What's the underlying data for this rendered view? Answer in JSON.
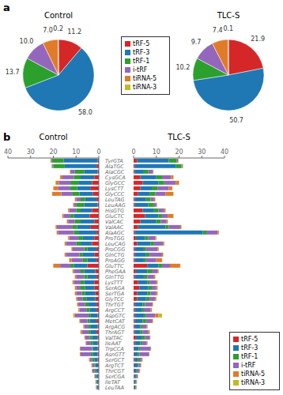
{
  "chart_data": [
    {
      "type": "pie",
      "title": "Control",
      "annotations": [
        "a"
      ],
      "categories": [
        "tRF-5",
        "tRF-3",
        "tRF-1",
        "i-tRF",
        "tiRNA-5",
        "tiRNA-3"
      ],
      "values": [
        11.2,
        58.0,
        13.7,
        10.0,
        7.0,
        0.2
      ],
      "value_labels": [
        "11.2",
        "58.0",
        "13.7",
        "10.0",
        "7.0",
        "0.2"
      ],
      "colors": [
        "#d62728",
        "#1f77b4",
        "#2ca02c",
        "#9467bd",
        "#e07b2a",
        "#bcbd22"
      ],
      "data_labels": true,
      "legend": "right"
    },
    {
      "type": "pie",
      "title": "TLC-S",
      "categories": [
        "tRF-5",
        "tRF-3",
        "tRF-1",
        "i-tRF",
        "tiRNA-5",
        "tiRNA-3"
      ],
      "values": [
        21.9,
        50.7,
        10.2,
        9.7,
        7.4,
        0.1
      ],
      "value_labels": [
        "21.9",
        "50.7",
        "10.2",
        "9.7",
        "7.4",
        "0.1"
      ],
      "colors": [
        "#d62728",
        "#1f77b4",
        "#2ca02c",
        "#9467bd",
        "#e07b2a",
        "#bcbd22"
      ],
      "data_labels": true
    },
    {
      "type": "bar",
      "title": "Control",
      "annotations": [
        "b"
      ],
      "orientation": "horizontal",
      "stacked": true,
      "xlim": [
        0,
        40
      ],
      "xticks": [
        0,
        10,
        20,
        30,
        40
      ],
      "categories": [
        "TyrGTA",
        "AlaTGC",
        "AlaCGC",
        "CysGCA",
        "GlyGCC",
        "LysCTT",
        "GlyCCC",
        "LeuTAG",
        "LeuAAG",
        "HisGTG",
        "GluCTC",
        "ValCAC",
        "ValAAC",
        "AlaAGC",
        "ProTGG",
        "LeuCAG",
        "ProCGG",
        "GlnCTG",
        "ProAGG",
        "GluTTC",
        "PheGAA",
        "GlnTTG",
        "LysTTT",
        "SerAGA",
        "SerTGA",
        "GlyTCC",
        "ThrTGT",
        "ArgCCT",
        "AspGTC",
        "MetCAT",
        "ArgACG",
        "ThrAGT",
        "ValTAC",
        "IleAAT",
        "TrpCCA",
        "AsnGTT",
        "SerGCT",
        "ArgTCT",
        "ThrCGT",
        "SerCGA",
        "IleTAT",
        "LeuTAA"
      ],
      "series": [
        {
          "name": "tRF-5",
          "color": "#d62728",
          "values": [
            0.5,
            1.0,
            0.5,
            2.0,
            3.0,
            3.5,
            2.5,
            1.0,
            0.5,
            3.0,
            4.0,
            2.0,
            3.5,
            1.0,
            2.0,
            3.0,
            1.0,
            2.0,
            1.0,
            5.0,
            1.5,
            1.0,
            2.0,
            2.0,
            1.5,
            1.5,
            1.0,
            1.0,
            0.5,
            1.0,
            0.5,
            1.0,
            0.5,
            0.5,
            0.5,
            0.5,
            0.5,
            0.3,
            0.3,
            0.2,
            0.2,
            0.2
          ]
        },
        {
          "name": "tRF-3",
          "color": "#1f77b4",
          "values": [
            15.0,
            14.0,
            6.0,
            6.0,
            6.0,
            6.0,
            6.0,
            5.0,
            6.0,
            5.0,
            7.0,
            6.0,
            6.0,
            8.0,
            5.0,
            5.0,
            4.0,
            5.0,
            4.0,
            6.0,
            5.0,
            4.0,
            4.5,
            4.0,
            4.5,
            4.0,
            3.5,
            3.0,
            3.0,
            3.0,
            3.0,
            2.5,
            2.5,
            2.0,
            2.0,
            2.0,
            1.5,
            1.2,
            1.0,
            0.8,
            0.5,
            0.5
          ]
        },
        {
          "name": "tRF-1",
          "color": "#2ca02c",
          "values": [
            5.0,
            5.0,
            4.0,
            3.0,
            3.5,
            3.0,
            3.0,
            2.0,
            3.5,
            2.0,
            1.5,
            2.5,
            2.0,
            2.0,
            2.0,
            2.0,
            1.5,
            1.5,
            2.0,
            1.5,
            1.5,
            1.5,
            1.5,
            2.0,
            1.5,
            1.5,
            1.5,
            1.5,
            1.0,
            1.0,
            1.0,
            1.0,
            1.0,
            1.0,
            0.5,
            1.0,
            1.0,
            0.5,
            0.5,
            0.3,
            0.3,
            0.2
          ]
        },
        {
          "name": "i-tRF",
          "color": "#9467bd",
          "values": [
            0.5,
            0.5,
            2.0,
            5.0,
            5.0,
            5.5,
            5.0,
            2.0,
            1.0,
            3.0,
            3.0,
            3.0,
            7.0,
            7.0,
            4.0,
            4.5,
            5.0,
            6.0,
            5.0,
            4.5,
            3.0,
            3.5,
            3.0,
            2.0,
            2.5,
            2.5,
            3.0,
            3.0,
            6.0,
            3.0,
            2.0,
            3.0,
            2.0,
            2.0,
            5.0,
            4.5,
            1.0,
            1.0,
            1.0,
            0.5,
            0.3,
            0.3
          ]
        },
        {
          "name": "tiRNA-5",
          "color": "#e07b2a",
          "values": [
            0.2,
            0.2,
            0.2,
            1.0,
            1.5,
            2.0,
            4.0,
            0.5,
            0.3,
            0.5,
            0.5,
            0.5,
            0.5,
            0.5,
            0.5,
            0.5,
            0.5,
            0.5,
            1.0,
            3.0,
            0.5,
            0.5,
            0.5,
            0.5,
            0.5,
            0.5,
            0.5,
            0.5,
            0.5,
            0.5,
            0.3,
            0.5,
            0.3,
            0.3,
            0.3,
            0.3,
            0.3,
            0.2,
            0.2,
            0.1,
            0.1,
            0.1
          ]
        },
        {
          "name": "tiRNA-3",
          "color": "#bcbd22",
          "values": [
            0.1,
            0.1,
            0.1,
            0.1,
            0.1,
            0.1,
            0.1,
            0.1,
            0.1,
            0.1,
            0.1,
            0.1,
            0.1,
            0.1,
            0.1,
            0.1,
            0.1,
            0.1,
            0.1,
            0.1,
            0.1,
            0.1,
            0.1,
            0.1,
            0.1,
            0.1,
            0.1,
            0.1,
            0.3,
            0.1,
            0.1,
            0.1,
            0.1,
            0.1,
            0.1,
            0.1,
            0.1,
            0.1,
            0.1,
            0.1,
            0.1,
            0.1
          ]
        }
      ]
    },
    {
      "type": "bar",
      "title": "TLC-S",
      "orientation": "horizontal",
      "stacked": true,
      "tick_labels": "x",
      "legend": "lower right",
      "xlim": [
        0,
        40
      ],
      "xticks": [
        0,
        10,
        20,
        30,
        40
      ],
      "categories": [
        "TyrGTA",
        "AlaTGC",
        "AlaCGC",
        "CysGCA",
        "GlyGCC",
        "LysCTT",
        "GlyCCC",
        "LeuTAG",
        "LeuAAG",
        "HisGTG",
        "GluCTC",
        "ValCAC",
        "ValAAC",
        "AlaAGC",
        "ProTGG",
        "LeuCAG",
        "ProCGG",
        "GlnCTG",
        "ProAGG",
        "GluTTC",
        "PheGAA",
        "GlnTTG",
        "LysTTT",
        "SerAGA",
        "SerTGA",
        "GlyTCC",
        "ThrTGT",
        "ArgCCT",
        "AspGTC",
        "MetCAT",
        "ArgACG",
        "ThrAGT",
        "ValTAC",
        "IleAAT",
        "TrpCCA",
        "AsnGTT",
        "SerGCT",
        "ArgTCT",
        "ThrCGT",
        "SerCGA",
        "IleTAT",
        "LeuTAA"
      ],
      "series": [
        {
          "name": "tRF-5",
          "color": "#d62728",
          "values": [
            1.5,
            0.5,
            0.5,
            3.0,
            4.0,
            3.0,
            2.0,
            0.5,
            0.5,
            4.0,
            5.0,
            3.0,
            2.0,
            0.5,
            1.0,
            1.5,
            0.5,
            0.5,
            0.5,
            6.0,
            1.0,
            0.5,
            2.0,
            2.5,
            1.5,
            1.5,
            0.5,
            0.5,
            0.5,
            0.5,
            0.5,
            0.5,
            1.0,
            0.5,
            0.3,
            0.3,
            0.5,
            0.3,
            0.3,
            0.2,
            0.2,
            0.2
          ]
        },
        {
          "name": "tRF-3",
          "color": "#1f77b4",
          "values": [
            14.0,
            18.0,
            4.0,
            7.0,
            7.0,
            5.0,
            5.0,
            5.0,
            6.0,
            5.0,
            6.0,
            7.0,
            12.0,
            30.0,
            4.0,
            6.0,
            4.0,
            5.0,
            4.0,
            5.0,
            5.0,
            4.0,
            4.0,
            4.0,
            4.5,
            4.0,
            3.5,
            3.0,
            4.0,
            3.5,
            2.5,
            2.5,
            2.5,
            2.5,
            2.0,
            1.5,
            1.5,
            1.5,
            1.0,
            0.8,
            0.5,
            0.5
          ]
        },
        {
          "name": "tRF-1",
          "color": "#2ca02c",
          "values": [
            3.5,
            2.5,
            2.0,
            2.5,
            2.5,
            2.5,
            2.5,
            2.0,
            2.5,
            2.0,
            1.5,
            2.0,
            1.5,
            1.5,
            1.5,
            1.5,
            1.0,
            1.5,
            1.0,
            1.5,
            2.0,
            1.5,
            1.0,
            1.5,
            1.5,
            1.5,
            1.0,
            1.0,
            1.0,
            1.5,
            0.8,
            1.0,
            1.5,
            0.8,
            0.5,
            0.8,
            0.8,
            0.5,
            0.5,
            0.3,
            0.3,
            0.2
          ]
        },
        {
          "name": "i-tRF",
          "color": "#9467bd",
          "values": [
            0.5,
            0.5,
            2.0,
            4.0,
            5.0,
            5.0,
            4.5,
            1.5,
            1.0,
            2.5,
            2.5,
            2.5,
            5.0,
            5.0,
            3.0,
            4.0,
            5.0,
            5.5,
            4.5,
            3.5,
            2.5,
            3.0,
            3.0,
            2.0,
            2.5,
            2.5,
            3.0,
            3.0,
            4.0,
            2.5,
            2.0,
            2.5,
            2.0,
            2.0,
            4.5,
            4.0,
            0.8,
            0.8,
            0.8,
            0.5,
            0.3,
            0.3
          ]
        },
        {
          "name": "tiRNA-5",
          "color": "#e07b2a",
          "values": [
            0.2,
            0.2,
            0.2,
            1.0,
            1.5,
            1.5,
            3.5,
            0.5,
            0.3,
            0.5,
            2.5,
            0.5,
            0.5,
            0.5,
            0.5,
            0.5,
            0.5,
            0.5,
            2.5,
            4.5,
            0.5,
            0.5,
            0.5,
            0.5,
            0.5,
            0.5,
            0.5,
            0.5,
            1.5,
            0.5,
            0.3,
            0.5,
            0.3,
            0.3,
            0.3,
            0.3,
            0.3,
            0.2,
            0.2,
            0.1,
            0.1,
            0.1
          ]
        },
        {
          "name": "tiRNA-3",
          "color": "#bcbd22",
          "values": [
            0.1,
            0.1,
            0.1,
            0.1,
            0.1,
            0.1,
            0.1,
            0.1,
            0.1,
            0.1,
            0.1,
            0.1,
            0.1,
            0.1,
            0.1,
            0.1,
            0.1,
            0.1,
            0.1,
            0.1,
            0.1,
            0.1,
            0.1,
            0.1,
            0.1,
            0.1,
            0.1,
            0.1,
            1.5,
            0.1,
            0.1,
            0.1,
            0.1,
            0.1,
            0.1,
            0.1,
            0.1,
            0.1,
            0.1,
            0.1,
            0.1,
            0.1
          ]
        }
      ]
    }
  ]
}
